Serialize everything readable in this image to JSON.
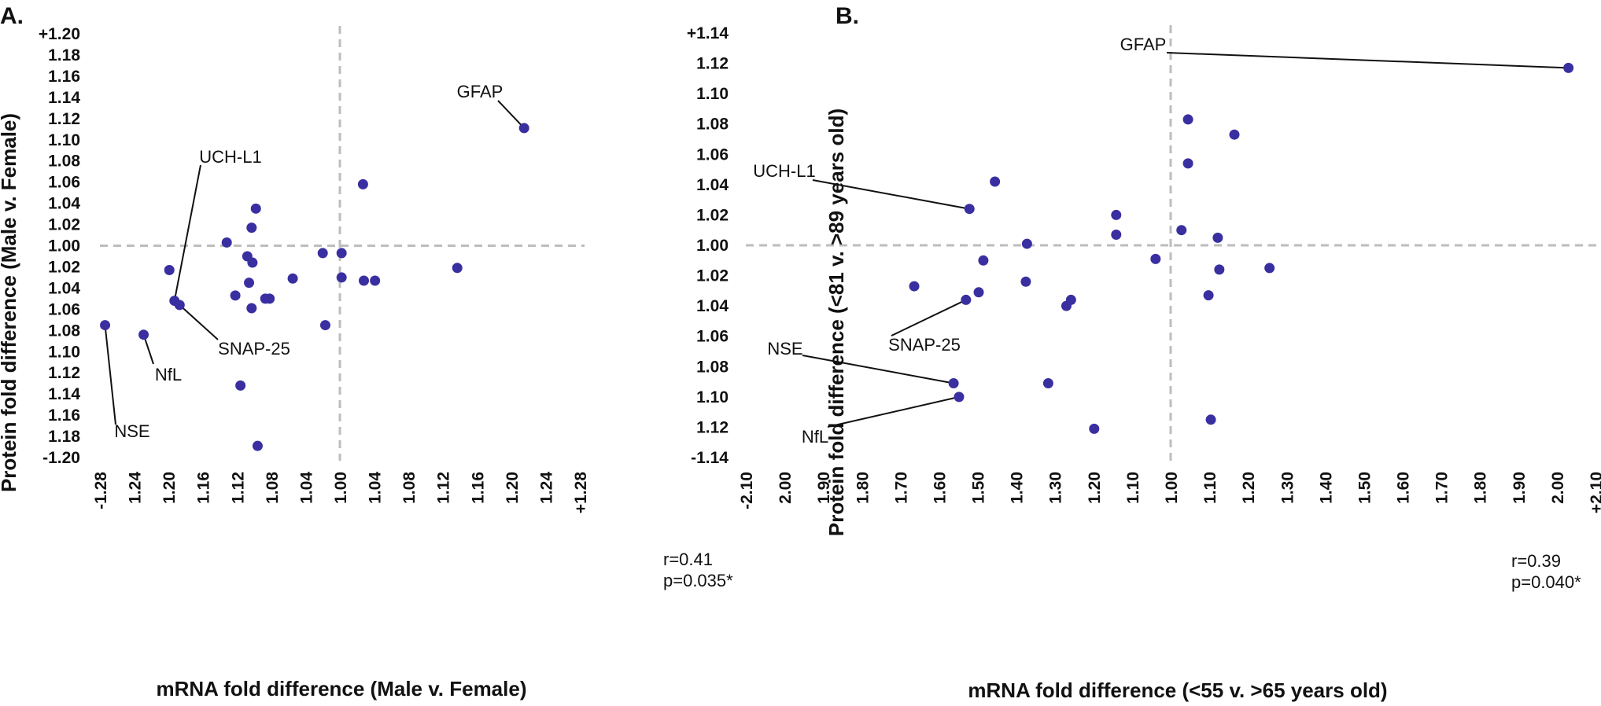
{
  "chart_data": [
    {
      "type": "scatter",
      "panel_label": "A.",
      "xlabel": "mRNA fold difference (Male v. Female)",
      "ylabel": "Protein fold difference (Male v. Female)",
      "x_ticks": [
        "-1.28",
        "1.24",
        "1.20",
        "1.16",
        "1.12",
        "1.08",
        "1.04",
        "1.00",
        "1.04",
        "1.08",
        "1.12",
        "1.16",
        "1.20",
        "1.24",
        "+1.28"
      ],
      "x_tick_values": [
        -0.28,
        -0.24,
        -0.2,
        -0.16,
        -0.12,
        -0.08,
        -0.04,
        0.0,
        0.04,
        0.08,
        0.12,
        0.16,
        0.2,
        0.24,
        0.28
      ],
      "y_ticks": [
        "+1.20",
        "1.18",
        "1.16",
        "1.14",
        "1.12",
        "1.10",
        "1.08",
        "1.06",
        "1.04",
        "1.02",
        "1.00",
        "1.02",
        "1.04",
        "1.06",
        "1.08",
        "1.10",
        "1.12",
        "1.14",
        "1.16",
        "1.18",
        "-1.20"
      ],
      "y_tick_values": [
        0.2,
        0.18,
        0.16,
        0.14,
        0.12,
        0.1,
        0.08,
        0.06,
        0.04,
        0.02,
        0.0,
        -0.02,
        -0.04,
        -0.06,
        -0.08,
        -0.1,
        -0.12,
        -0.14,
        -0.16,
        -0.18,
        -0.2
      ],
      "xlim": [
        -0.28,
        0.28
      ],
      "ylim": [
        -0.2,
        0.2
      ],
      "stats": [
        "r=0.41",
        "p=0.035*"
      ],
      "points": [
        {
          "x": 0.215,
          "y": 0.111,
          "label": "GFAP"
        },
        {
          "x": 0.027,
          "y": 0.058
        },
        {
          "x": -0.098,
          "y": 0.035
        },
        {
          "x": -0.103,
          "y": 0.017
        },
        {
          "x": -0.132,
          "y": 0.003
        },
        {
          "x": -0.108,
          "y": -0.01
        },
        {
          "x": -0.102,
          "y": -0.016
        },
        {
          "x": -0.02,
          "y": -0.007
        },
        {
          "x": 0.002,
          "y": -0.007
        },
        {
          "x": -0.199,
          "y": -0.023
        },
        {
          "x": -0.055,
          "y": -0.031
        },
        {
          "x": 0.002,
          "y": -0.03
        },
        {
          "x": 0.028,
          "y": -0.033
        },
        {
          "x": 0.041,
          "y": -0.033
        },
        {
          "x": -0.106,
          "y": -0.035
        },
        {
          "x": 0.137,
          "y": -0.021
        },
        {
          "x": -0.122,
          "y": -0.047
        },
        {
          "x": -0.087,
          "y": -0.05
        },
        {
          "x": -0.082,
          "y": -0.05
        },
        {
          "x": -0.193,
          "y": -0.052,
          "label": "UCH-L1"
        },
        {
          "x": -0.187,
          "y": -0.056,
          "label": "SNAP-25"
        },
        {
          "x": -0.103,
          "y": -0.059
        },
        {
          "x": -0.017,
          "y": -0.075
        },
        {
          "x": -0.274,
          "y": -0.075,
          "label": "NSE"
        },
        {
          "x": -0.229,
          "y": -0.084,
          "label": "NfL"
        },
        {
          "x": -0.116,
          "y": -0.132
        },
        {
          "x": -0.096,
          "y": -0.189
        }
      ]
    },
    {
      "type": "scatter",
      "panel_label": "B.",
      "xlabel": "mRNA fold difference (<55 v. >65 years old)",
      "ylabel": "Protein fold difference (<81 v. >89 years old)",
      "x_ticks": [
        "-2.10",
        "2.00",
        "1.90",
        "1.80",
        "1.70",
        "1.60",
        "1.50",
        "1.40",
        "1.30",
        "1.20",
        "1.10",
        "1.00",
        "1.10",
        "1.20",
        "1.30",
        "1.40",
        "1.50",
        "1.60",
        "1.70",
        "1.80",
        "1.90",
        "2.00",
        "+2.10"
      ],
      "x_tick_values": [
        -1.1,
        -1.0,
        -0.9,
        -0.8,
        -0.7,
        -0.6,
        -0.5,
        -0.4,
        -0.3,
        -0.2,
        -0.1,
        0.0,
        0.1,
        0.2,
        0.3,
        0.4,
        0.5,
        0.6,
        0.7,
        0.8,
        0.9,
        1.0,
        1.1
      ],
      "y_ticks": [
        "+1.14",
        "1.12",
        "1.10",
        "1.08",
        "1.06",
        "1.04",
        "1.02",
        "1.00",
        "1.02",
        "1.04",
        "1.06",
        "1.08",
        "1.10",
        "1.12",
        "-1.14"
      ],
      "y_tick_values": [
        0.14,
        0.12,
        0.1,
        0.08,
        0.06,
        0.04,
        0.02,
        0.0,
        -0.02,
        -0.04,
        -0.06,
        -0.08,
        -0.1,
        -0.12,
        -0.14
      ],
      "xlim": [
        -1.1,
        1.1
      ],
      "ylim": [
        -0.14,
        0.14
      ],
      "stats": [
        "r=0.39",
        "p=0.040*"
      ],
      "points": [
        {
          "x": 1.03,
          "y": 0.117,
          "label": "GFAP"
        },
        {
          "x": 0.045,
          "y": 0.083
        },
        {
          "x": 0.165,
          "y": 0.073
        },
        {
          "x": 0.045,
          "y": 0.054
        },
        {
          "x": -0.455,
          "y": 0.042
        },
        {
          "x": -0.521,
          "y": 0.024,
          "label": "UCH-L1"
        },
        {
          "x": -0.141,
          "y": 0.02
        },
        {
          "x": 0.028,
          "y": 0.01
        },
        {
          "x": -0.141,
          "y": 0.007
        },
        {
          "x": 0.122,
          "y": 0.005
        },
        {
          "x": -0.372,
          "y": 0.001
        },
        {
          "x": -0.039,
          "y": -0.009
        },
        {
          "x": -0.485,
          "y": -0.01
        },
        {
          "x": 0.126,
          "y": -0.016
        },
        {
          "x": 0.256,
          "y": -0.015
        },
        {
          "x": -0.375,
          "y": -0.024
        },
        {
          "x": -0.664,
          "y": -0.027
        },
        {
          "x": -0.497,
          "y": -0.031
        },
        {
          "x": 0.098,
          "y": -0.033
        },
        {
          "x": -0.53,
          "y": -0.036,
          "label": "SNAP-25"
        },
        {
          "x": -0.258,
          "y": -0.036
        },
        {
          "x": -0.27,
          "y": -0.04
        },
        {
          "x": -0.562,
          "y": -0.091,
          "label": "NSE"
        },
        {
          "x": -0.317,
          "y": -0.091
        },
        {
          "x": -0.548,
          "y": -0.1,
          "label": "NfL"
        },
        {
          "x": 0.104,
          "y": -0.115
        },
        {
          "x": -0.198,
          "y": -0.121
        }
      ]
    }
  ]
}
